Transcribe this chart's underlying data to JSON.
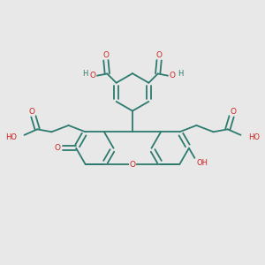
{
  "bg_color": "#e8e8e8",
  "bond_color": "#2d7a6e",
  "oxygen_color": "#cc2222",
  "figsize": [
    3.0,
    3.0
  ],
  "dpi": 100,
  "xlim": [
    0,
    10
  ],
  "ylim": [
    0,
    10
  ]
}
